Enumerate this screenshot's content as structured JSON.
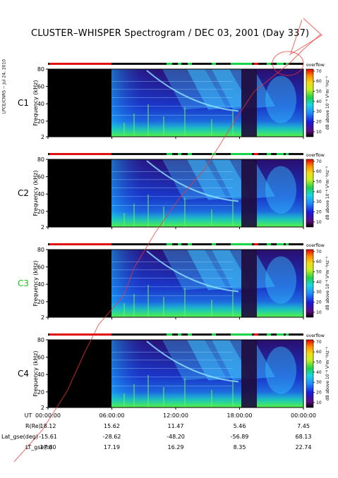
{
  "title": "CLUSTER–WHISPER Spectrogram / DEC 03, 2001 (Day 337)",
  "credit": "LPCE/CNRS -- Jul 24, 2010",
  "chart_data": {
    "type": "heatmap",
    "title": "CLUSTER–WHISPER Spectrogram / DEC 03, 2001 (Day 337)",
    "ylabel": "Frequency (kHz)",
    "ylim": [
      2,
      80
    ],
    "yticks": [
      "2",
      "20",
      "40",
      "60",
      "80"
    ],
    "xticks": [
      "00:00:00",
      "06:00:00",
      "12:00:00",
      "18:00:00",
      "00:00:00"
    ],
    "colorbar": {
      "label": "dB above 10⁻⁸ V²m⁻²Hz⁻¹",
      "top_label": "overflow",
      "ticks": [
        "10",
        "20",
        "30",
        "40",
        "50",
        "60",
        "70"
      ],
      "range": [
        5,
        72
      ]
    },
    "panels": [
      {
        "name": "C1",
        "name_color": "#000000"
      },
      {
        "name": "C2",
        "name_color": "#000000"
      },
      {
        "name": "C3",
        "name_color": "#19c419"
      },
      {
        "name": "C4",
        "name_color": "#000000"
      }
    ]
  },
  "ephemeris": {
    "labels": [
      "UT",
      "R(Re)",
      "Lat_gse(deg)",
      "LT_gse(h)"
    ],
    "columns": [
      [
        "00:00:00",
        "18.12",
        "-15.61",
        "17.80"
      ],
      [
        "06:00:00",
        "15.62",
        "-28.62",
        "17.19"
      ],
      [
        "12:00:00",
        "11.47",
        "-48.20",
        "16.29"
      ],
      [
        "18:00:00",
        "5.46",
        "-56.89",
        "8.35"
      ],
      [
        "00:00:00",
        "7.45",
        "68.13",
        "22.74"
      ]
    ]
  }
}
